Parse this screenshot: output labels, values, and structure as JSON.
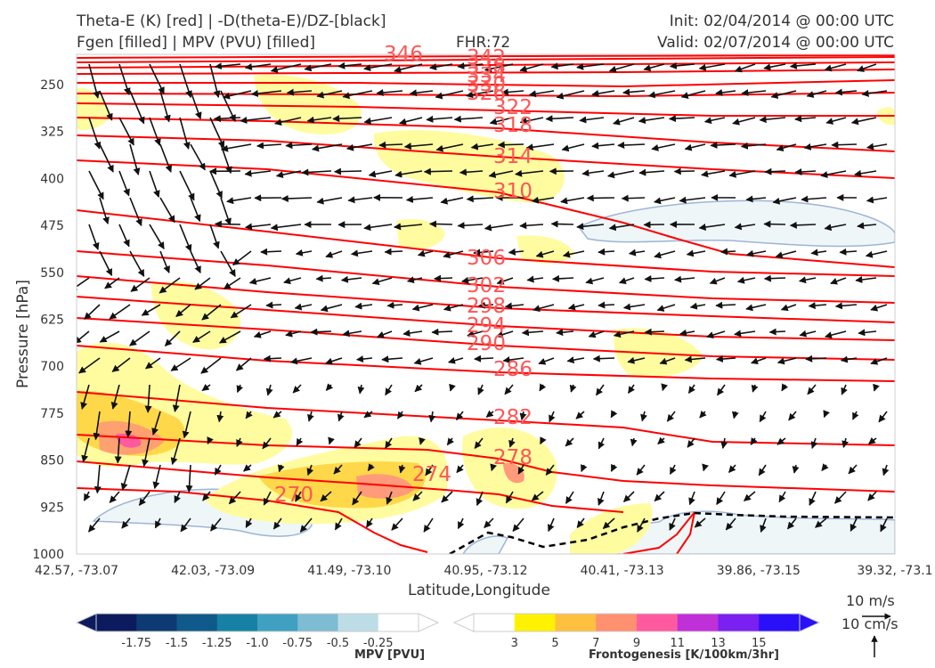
{
  "titles": {
    "left_line1": "Theta-E (K) [red] | -D(theta-E)/DZ-[black]",
    "left_line2": "Fgen [filled] | MPV (PVU) [filled]",
    "center": "FHR:72",
    "init": "Init: 02/04/2014 @ 00:00 UTC",
    "valid": "Valid: 02/07/2014 @ 00:00 UTC"
  },
  "chart_data": {
    "type": "cross-section",
    "xlabel": "Latitude,Longitude",
    "ylabel": "Pressure [hPa]",
    "x_ticks": [
      "42.57, -73.07",
      "42.03, -73.09",
      "41.49, -73.10",
      "40.95, -73.12",
      "40.41, -73.13",
      "39.86, -73.15",
      "39.32, -73.1"
    ],
    "y_ticks": [
      250,
      325,
      400,
      475,
      550,
      625,
      700,
      775,
      850,
      925,
      1000
    ],
    "ylim": [
      1000,
      190
    ],
    "theta_e_contour_labels": [
      "346",
      "342",
      "338",
      "334",
      "330",
      "326",
      "322",
      "318",
      "314",
      "310",
      "306",
      "302",
      "298",
      "294",
      "290",
      "286",
      "282",
      "278",
      "274",
      "270"
    ],
    "colors": {
      "theta_e": "#ff0000",
      "label": "#ff5555",
      "vector": "#111111",
      "mpv_fill": "#eef6f8",
      "fgen_fill": "#fffca0"
    }
  },
  "mpv_colorbar": {
    "title": "MPV [PVU]",
    "ticks": [
      "-1.75",
      "-1.5",
      "-1.25",
      "-1.0",
      "-0.75",
      "-0.5",
      "-0.25"
    ],
    "colors": [
      "#0c1a5e",
      "#0d3a73",
      "#0f5a8a",
      "#1681a5",
      "#3fa0c2",
      "#7dbcd2",
      "#bddde6",
      "#ffffff"
    ]
  },
  "fgen_colorbar": {
    "title": "Frontogenesis [K/100km/3hr]",
    "ticks": [
      "3",
      "5",
      "7",
      "9",
      "11",
      "13",
      "15"
    ],
    "colors": [
      "#ffffff",
      "#fff200",
      "#ffc040",
      "#ff9070",
      "#ff5aa0",
      "#c030d8",
      "#7a20f0",
      "#2a10f8"
    ]
  },
  "vector_key": {
    "horizontal": "10 m/s",
    "vertical": "10 cm/s"
  }
}
